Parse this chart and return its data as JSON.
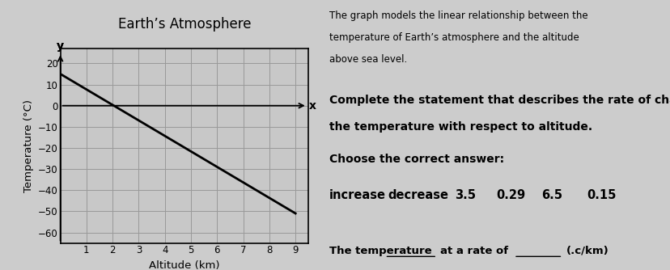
{
  "title": "Earth’s Atmosphere",
  "xlabel": "Altitude (km)",
  "ylabel": "Temperature (°C)",
  "x_ticks": [
    1,
    2,
    3,
    4,
    5,
    6,
    7,
    8,
    9
  ],
  "y_ticks": [
    20,
    10,
    0,
    -10,
    -20,
    -30,
    -40,
    -50,
    -60
  ],
  "xlim": [
    0,
    9.5
  ],
  "ylim": [
    -65,
    27
  ],
  "line_x": [
    0,
    9
  ],
  "line_y": [
    15,
    -51
  ],
  "line_color": "#000000",
  "line_width": 2.0,
  "bg_color": "#cccccc",
  "plot_face_color": "#c8c8c8",
  "grid_color": "#999999",
  "right_text_line1": "The graph models the linear relationship between the",
  "right_text_line2": "temperature of Earth’s atmosphere and the altitude",
  "right_text_line3": "above sea level.",
  "right_text_line4": "Complete the statement that describes the rate of change of",
  "right_text_line5": "the temperature with respect to altitude.",
  "right_text_line6": "Choose the correct answer:",
  "choice1": "increase",
  "choice2": "decrease",
  "choice3": "3.5",
  "choice4": "0.29",
  "choice5": "6.5",
  "choice6": "0.15",
  "bottom_label": "The temperature",
  "bottom_mid": "at a rate of",
  "bottom_end": "(.c/km)",
  "font_size_title": 12,
  "font_size_axis_label": 9.5,
  "font_size_ticks": 8.5,
  "font_size_right_small": 8.5,
  "font_size_right_large": 10,
  "font_size_choices": 10.5,
  "font_size_bottom": 9.5
}
